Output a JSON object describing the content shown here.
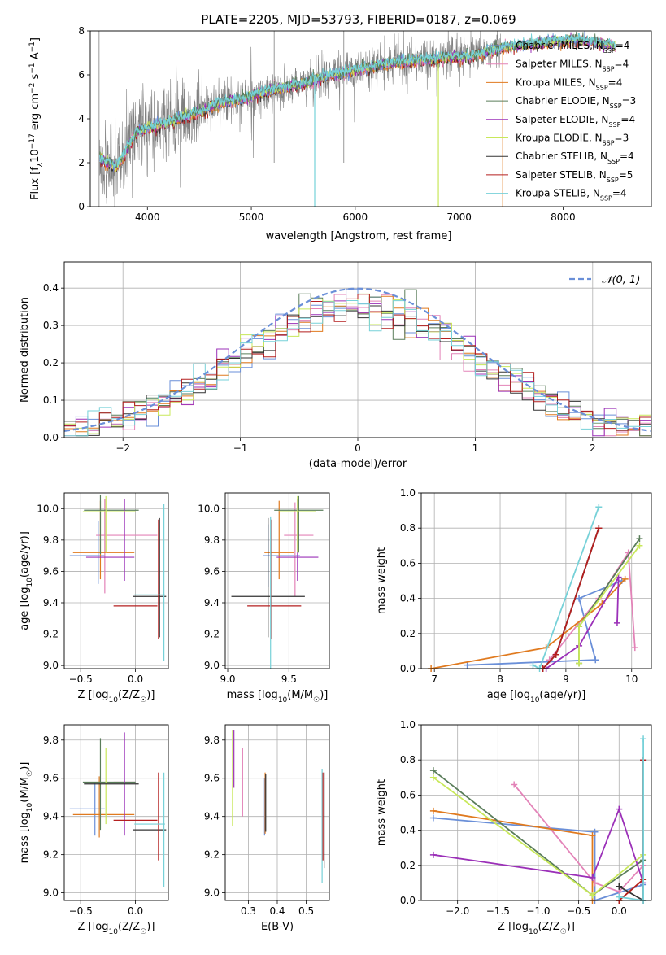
{
  "title": "PLATE=2205, MJD=53793, FIBERID=0187, z=0.069",
  "colors": {
    "chabrier_miles": "#6a8fd8",
    "salpeter_miles": "#e383b8",
    "kroupa_miles": "#e07a1f",
    "chabrier_elodie": "#5a7d5a",
    "salpeter_elodie": "#9b30b8",
    "kroupa_elodie": "#c8e85a",
    "chabrier_stelib": "#333333",
    "salpeter_stelib": "#b41f1f",
    "kroupa_stelib": "#76d1d8",
    "data": "#808080",
    "grid": "#b0b0b0"
  },
  "chart_data": [
    {
      "id": "spectrum",
      "type": "line",
      "xlabel": "wavelength [Angstrom, rest frame]",
      "ylabel": "Flux [f_λ 10^-17 erg cm^-2 s^-1 A^-1]",
      "xlim": [
        3450,
        8850
      ],
      "ylim": [
        0,
        8
      ],
      "xticks": [
        "4000",
        "5000",
        "6000",
        "7000",
        "8000"
      ],
      "yticks": [
        "0",
        "2",
        "4",
        "6",
        "8"
      ],
      "grid": false,
      "legend_position": "right",
      "legend": [
        {
          "label": "Chabrier MILES, N",
          "sub": "SSP",
          "suffix": "=4",
          "color_key": "chabrier_miles"
        },
        {
          "label": "Salpeter MILES, N",
          "sub": "SSP",
          "suffix": "=4",
          "color_key": "salpeter_miles"
        },
        {
          "label": "Kroupa MILES, N",
          "sub": "SSP",
          "suffix": "=4",
          "color_key": "kroupa_miles"
        },
        {
          "label": "Chabrier ELODIE, N",
          "sub": "SSP",
          "suffix": "=3",
          "color_key": "chabrier_elodie"
        },
        {
          "label": "Salpeter ELODIE, N",
          "sub": "SSP",
          "suffix": "=4",
          "color_key": "salpeter_elodie"
        },
        {
          "label": "Kroupa ELODIE, N",
          "sub": "SSP",
          "suffix": "=3",
          "color_key": "kroupa_elodie"
        },
        {
          "label": "Chabrier STELIB, N",
          "sub": "SSP",
          "suffix": "=4",
          "color_key": "chabrier_stelib"
        },
        {
          "label": "Salpeter STELIB, N",
          "sub": "SSP",
          "suffix": "=5",
          "color_key": "salpeter_stelib"
        },
        {
          "label": "Kroupa STELIB, N",
          "sub": "SSP",
          "suffix": "=4",
          "color_key": "kroupa_stelib"
        }
      ],
      "continuum": {
        "x": [
          3540,
          3700,
          3900,
          4100,
          4300,
          4500,
          4700,
          4900,
          5100,
          5300,
          5500,
          5700,
          5900,
          6100,
          6300,
          6500,
          6700,
          6900,
          7100,
          7300,
          7500,
          7700,
          7900,
          8100,
          8300,
          8500
        ],
        "y": [
          2.2,
          1.8,
          3.4,
          3.7,
          4.0,
          4.3,
          4.7,
          4.9,
          5.2,
          5.4,
          5.6,
          5.9,
          6.1,
          6.3,
          6.5,
          6.6,
          6.7,
          6.8,
          6.8,
          7.1,
          7.3,
          7.4,
          7.5,
          7.6,
          7.5,
          7.3
        ]
      },
      "model_range": [
        3540,
        8500
      ],
      "data_range": [
        3540,
        7400
      ]
    },
    {
      "id": "residual-histogram",
      "type": "bar",
      "xlabel": "(data-model)/error",
      "ylabel": "Normed distribution",
      "xlim": [
        -2.5,
        2.5
      ],
      "ylim": [
        0,
        0.47
      ],
      "xticks": [
        "−2",
        "−1",
        "0",
        "1",
        "2"
      ],
      "yticks": [
        "0.0",
        "0.1",
        "0.2",
        "0.3",
        "0.4"
      ],
      "grid": true,
      "legend_position": "top-right",
      "legend_label": "𝒩(0, 1)",
      "bin_width": 0.1,
      "series_color_keys": [
        "chabrier_miles",
        "salpeter_miles",
        "kroupa_miles",
        "chabrier_elodie",
        "salpeter_elodie",
        "kroupa_elodie",
        "chabrier_stelib",
        "salpeter_stelib",
        "kroupa_stelib"
      ]
    },
    {
      "id": "age-vs-Z",
      "type": "scatter",
      "xlabel": "Z [log10(Z/Z☉)]",
      "ylabel": "age  [log10(age/yr)]",
      "xlim": [
        -0.65,
        0.3
      ],
      "ylim": [
        8.98,
        10.1
      ],
      "xticks": [
        "−0.5",
        "0.0"
      ],
      "yticks": [
        "9.0",
        "9.2",
        "9.4",
        "9.6",
        "9.8",
        "10.0"
      ],
      "grid": true,
      "points": [
        {
          "x": -0.44,
          "y": 9.7,
          "xerr": 0.16,
          "yerr": 0.0,
          "color_key": "chabrier_miles"
        },
        {
          "x": -0.34,
          "y": 9.72,
          "xerr": 0.0,
          "yerr": 0.2,
          "color_key": "chabrier_miles"
        },
        {
          "x": -0.08,
          "y": 9.83,
          "xerr": 0.28,
          "yerr": 0.0,
          "color_key": "salpeter_miles"
        },
        {
          "x": -0.28,
          "y": 9.76,
          "xerr": 0.0,
          "yerr": 0.3,
          "color_key": "salpeter_miles"
        },
        {
          "x": -0.29,
          "y": 9.72,
          "xerr": 0.28,
          "yerr": 0.0,
          "color_key": "kroupa_miles"
        },
        {
          "x": -0.32,
          "y": 9.8,
          "xerr": 0.0,
          "yerr": 0.25,
          "color_key": "kroupa_miles"
        },
        {
          "x": -0.22,
          "y": 9.99,
          "xerr": 0.25,
          "yerr": 0.0,
          "color_key": "chabrier_elodie"
        },
        {
          "x": -0.32,
          "y": 9.9,
          "xerr": 0.0,
          "yerr": 0.19,
          "color_key": "chabrier_elodie"
        },
        {
          "x": -0.23,
          "y": 9.69,
          "xerr": 0.22,
          "yerr": 0.0,
          "color_key": "salpeter_elodie"
        },
        {
          "x": -0.1,
          "y": 9.8,
          "xerr": 0.0,
          "yerr": 0.26,
          "color_key": "salpeter_elodie"
        },
        {
          "x": -0.24,
          "y": 9.98,
          "xerr": 0.24,
          "yerr": 0.0,
          "color_key": "kroupa_elodie"
        },
        {
          "x": -0.27,
          "y": 9.9,
          "xerr": 0.0,
          "yerr": 0.18,
          "color_key": "kroupa_elodie"
        },
        {
          "x": 0.13,
          "y": 9.44,
          "xerr": 0.15,
          "yerr": 0.0,
          "color_key": "chabrier_stelib"
        },
        {
          "x": 0.22,
          "y": 9.56,
          "xerr": 0.0,
          "yerr": 0.38,
          "color_key": "chabrier_stelib"
        },
        {
          "x": 0.0,
          "y": 9.38,
          "xerr": 0.2,
          "yerr": 0.0,
          "color_key": "salpeter_stelib"
        },
        {
          "x": 0.21,
          "y": 9.55,
          "xerr": 0.0,
          "yerr": 0.38,
          "color_key": "salpeter_stelib"
        },
        {
          "x": 0.13,
          "y": 9.45,
          "xerr": 0.14,
          "yerr": 0.0,
          "color_key": "kroupa_stelib"
        },
        {
          "x": 0.26,
          "y": 9.53,
          "xerr": 0.0,
          "yerr": 0.5,
          "color_key": "kroupa_stelib"
        }
      ]
    },
    {
      "id": "age-vs-mass",
      "type": "scatter",
      "xlabel": "mass [log10(M/M☉)]",
      "ylabel": "",
      "xlim": [
        8.98,
        9.83
      ],
      "ylim": [
        8.98,
        10.1
      ],
      "xticks": [
        "9.0",
        "9.5"
      ],
      "yticks": [
        "9.0",
        "9.2",
        "9.4",
        "9.6",
        "9.8",
        "10.0"
      ],
      "grid": true,
      "points": [
        {
          "x": 9.44,
          "y": 9.7,
          "xerr": 0.15,
          "yerr": 0.0,
          "color_key": "chabrier_miles"
        },
        {
          "x": 9.33,
          "y": 9.7,
          "xerr": 0.0,
          "yerr": 0.2,
          "color_key": "chabrier_miles"
        },
        {
          "x": 9.58,
          "y": 9.83,
          "xerr": 0.12,
          "yerr": 0.0,
          "color_key": "salpeter_miles"
        },
        {
          "x": 9.55,
          "y": 9.74,
          "xerr": 0.0,
          "yerr": 0.3,
          "color_key": "salpeter_miles"
        },
        {
          "x": 9.42,
          "y": 9.72,
          "xerr": 0.12,
          "yerr": 0.0,
          "color_key": "kroupa_miles"
        },
        {
          "x": 9.42,
          "y": 9.8,
          "xerr": 0.0,
          "yerr": 0.25,
          "color_key": "kroupa_miles"
        },
        {
          "x": 9.58,
          "y": 9.99,
          "xerr": 0.2,
          "yerr": 0.0,
          "color_key": "chabrier_elodie"
        },
        {
          "x": 9.58,
          "y": 9.9,
          "xerr": 0.0,
          "yerr": 0.18,
          "color_key": "chabrier_elodie"
        },
        {
          "x": 9.57,
          "y": 9.69,
          "xerr": 0.17,
          "yerr": 0.0,
          "color_key": "salpeter_elodie"
        },
        {
          "x": 9.57,
          "y": 9.8,
          "xerr": 0.0,
          "yerr": 0.26,
          "color_key": "salpeter_elodie"
        },
        {
          "x": 9.57,
          "y": 9.98,
          "xerr": 0.15,
          "yerr": 0.0,
          "color_key": "kroupa_elodie"
        },
        {
          "x": 9.57,
          "y": 9.9,
          "xerr": 0.0,
          "yerr": 0.18,
          "color_key": "kroupa_elodie"
        },
        {
          "x": 9.33,
          "y": 9.44,
          "xerr": 0.3,
          "yerr": 0.0,
          "color_key": "chabrier_stelib"
        },
        {
          "x": 9.33,
          "y": 9.56,
          "xerr": 0.0,
          "yerr": 0.38,
          "color_key": "chabrier_stelib"
        },
        {
          "x": 9.38,
          "y": 9.38,
          "xerr": 0.22,
          "yerr": 0.0,
          "color_key": "salpeter_stelib"
        },
        {
          "x": 9.36,
          "y": 9.55,
          "xerr": 0.0,
          "yerr": 0.38,
          "color_key": "salpeter_stelib"
        },
        {
          "x": 9.35,
          "y": 9.45,
          "xerr": 0.0,
          "yerr": 0.5,
          "color_key": "kroupa_stelib"
        }
      ]
    },
    {
      "id": "mass-weight-vs-age",
      "type": "line",
      "xlabel": "age  [log10(age/yr)]",
      "ylabel": "mass weight",
      "xlim": [
        6.8,
        10.3
      ],
      "ylim": [
        0,
        1
      ],
      "xticks": [
        "7",
        "8",
        "9",
        "10"
      ],
      "yticks": [
        "0.0",
        "0.2",
        "0.4",
        "0.6",
        "0.8",
        "1.0"
      ],
      "grid": true,
      "series": [
        {
          "color_key": "chabrier_miles",
          "x": [
            7.5,
            9.45,
            9.2,
            9.85
          ],
          "y": [
            0.02,
            0.05,
            0.4,
            0.5
          ]
        },
        {
          "color_key": "salpeter_miles",
          "x": [
            8.75,
            9.5,
            9.95,
            10.05
          ],
          "y": [
            0.05,
            0.4,
            0.66,
            0.12
          ]
        },
        {
          "color_key": "kroupa_miles",
          "x": [
            6.95,
            8.7,
            9.55,
            9.9
          ],
          "y": [
            0.0,
            0.12,
            0.37,
            0.51
          ]
        },
        {
          "color_key": "chabrier_elodie",
          "x": [
            9.2,
            9.2,
            10.12
          ],
          "y": [
            0.03,
            0.24,
            0.74
          ]
        },
        {
          "color_key": "salpeter_elodie",
          "x": [
            8.7,
            9.2,
            9.8,
            9.78
          ],
          "y": [
            0.0,
            0.13,
            0.52,
            0.26
          ]
        },
        {
          "color_key": "kroupa_elodie",
          "x": [
            9.2,
            9.2,
            10.12
          ],
          "y": [
            0.03,
            0.24,
            0.7
          ]
        },
        {
          "color_key": "chabrier_stelib",
          "x": [
            8.65,
            8.85,
            9.5
          ],
          "y": [
            0.0,
            0.08,
            0.8
          ]
        },
        {
          "color_key": "salpeter_stelib",
          "x": [
            8.65,
            8.85,
            9.5
          ],
          "y": [
            0.0,
            0.08,
            0.8
          ]
        },
        {
          "color_key": "kroupa_stelib",
          "x": [
            8.5,
            8.6,
            9.5
          ],
          "y": [
            0.02,
            0.0,
            0.92
          ]
        }
      ]
    },
    {
      "id": "mass-vs-Z",
      "type": "scatter",
      "xlabel": "Z [log10(Z/Z☉)]",
      "ylabel": "mass [log10(M/M☉)]",
      "xlim": [
        -0.65,
        0.3
      ],
      "ylim": [
        8.96,
        9.88
      ],
      "xticks": [
        "−0.5",
        "0.0"
      ],
      "yticks": [
        "9.0",
        "9.2",
        "9.4",
        "9.6",
        "9.8"
      ],
      "grid": true,
      "points": [
        {
          "x": -0.44,
          "y": 9.44,
          "xerr": 0.16,
          "yerr": 0.0,
          "color_key": "chabrier_miles"
        },
        {
          "x": -0.37,
          "y": 9.44,
          "xerr": 0.0,
          "yerr": 0.14,
          "color_key": "chabrier_miles"
        },
        {
          "x": -0.1,
          "y": 9.58,
          "xerr": 0.1,
          "yerr": 0.0,
          "color_key": "salpeter_miles"
        },
        {
          "x": -0.29,
          "y": 9.41,
          "xerr": 0.28,
          "yerr": 0.0,
          "color_key": "kroupa_miles"
        },
        {
          "x": -0.33,
          "y": 9.45,
          "xerr": 0.0,
          "yerr": 0.16,
          "color_key": "kroupa_miles"
        },
        {
          "x": -0.24,
          "y": 9.58,
          "xerr": 0.24,
          "yerr": 0.0,
          "color_key": "chabrier_elodie"
        },
        {
          "x": -0.32,
          "y": 9.57,
          "xerr": 0.0,
          "yerr": 0.24,
          "color_key": "chabrier_elodie"
        },
        {
          "x": -0.1,
          "y": 9.57,
          "xerr": 0.0,
          "yerr": 0.27,
          "color_key": "salpeter_elodie"
        },
        {
          "x": -0.27,
          "y": 9.56,
          "xerr": 0.0,
          "yerr": 0.2,
          "color_key": "kroupa_elodie"
        },
        {
          "x": -0.22,
          "y": 9.57,
          "xerr": 0.25,
          "yerr": 0.0,
          "color_key": "chabrier_stelib"
        },
        {
          "x": 0.13,
          "y": 9.33,
          "xerr": 0.15,
          "yerr": 0.0,
          "color_key": "chabrier_stelib"
        },
        {
          "x": 0.0,
          "y": 9.38,
          "xerr": 0.2,
          "yerr": 0.0,
          "color_key": "salpeter_stelib"
        },
        {
          "x": 0.21,
          "y": 9.4,
          "xerr": 0.0,
          "yerr": 0.23,
          "color_key": "salpeter_stelib"
        },
        {
          "x": 0.13,
          "y": 9.36,
          "xerr": 0.14,
          "yerr": 0.0,
          "color_key": "kroupa_stelib"
        },
        {
          "x": 0.26,
          "y": 9.33,
          "xerr": 0.0,
          "yerr": 0.3,
          "color_key": "kroupa_stelib"
        }
      ]
    },
    {
      "id": "mass-vs-ebv",
      "type": "scatter",
      "xlabel": "E(B-V)",
      "ylabel": "",
      "xlim": [
        0.22,
        0.58
      ],
      "ylim": [
        8.96,
        9.88
      ],
      "xticks": [
        "0.3",
        "0.4",
        "0.5"
      ],
      "yticks": [
        "9.0",
        "9.2",
        "9.4",
        "9.6",
        "9.8"
      ],
      "grid": true,
      "points": [
        {
          "x": 0.245,
          "y": 9.6,
          "yerr": 0.25,
          "color_key": "kroupa_elodie"
        },
        {
          "x": 0.25,
          "y": 9.7,
          "yerr": 0.15,
          "color_key": "salpeter_elodie"
        },
        {
          "x": 0.28,
          "y": 9.58,
          "yerr": 0.18,
          "color_key": "salpeter_miles"
        },
        {
          "x": 0.356,
          "y": 9.45,
          "yerr": 0.15,
          "color_key": "chabrier_miles"
        },
        {
          "x": 0.358,
          "y": 9.47,
          "yerr": 0.16,
          "color_key": "kroupa_miles"
        },
        {
          "x": 0.36,
          "y": 9.47,
          "yerr": 0.15,
          "color_key": "chabrier_stelib"
        },
        {
          "x": 0.555,
          "y": 9.35,
          "yerr": 0.3,
          "color_key": "kroupa_stelib"
        },
        {
          "x": 0.558,
          "y": 9.4,
          "yerr": 0.23,
          "color_key": "salpeter_stelib"
        },
        {
          "x": 0.562,
          "y": 9.38,
          "yerr": 0.25,
          "color_key": "chabrier_stelib"
        }
      ]
    },
    {
      "id": "mass-weight-vs-Z",
      "type": "line",
      "xlabel": "Z [log10(Z/Z☉)]",
      "ylabel": "mass weight",
      "xlim": [
        -2.45,
        0.4
      ],
      "ylim": [
        0,
        1
      ],
      "xticks": [
        "−2.0",
        "−1.5",
        "−1.0",
        "−0.5",
        "0.0"
      ],
      "yticks": [
        "0.0",
        "0.2",
        "0.4",
        "0.6",
        "0.8",
        "1.0"
      ],
      "grid": true,
      "series": [
        {
          "color_key": "chabrier_miles",
          "x": [
            -2.3,
            -0.3,
            -0.3,
            0.3
          ],
          "y": [
            0.47,
            0.39,
            0.0,
            0.09
          ]
        },
        {
          "color_key": "salpeter_miles",
          "x": [
            -1.3,
            -0.3,
            0.0,
            0.3
          ],
          "y": [
            0.66,
            0.1,
            0.05,
            0.2
          ]
        },
        {
          "color_key": "kroupa_miles",
          "x": [
            -2.3,
            -0.33,
            -0.33,
            0.0,
            0.3
          ],
          "y": [
            0.51,
            0.37,
            0.0,
            0.0,
            0.12
          ]
        },
        {
          "color_key": "chabrier_elodie",
          "x": [
            -2.3,
            -0.33,
            0.3
          ],
          "y": [
            0.74,
            0.03,
            0.23
          ]
        },
        {
          "color_key": "salpeter_elodie",
          "x": [
            -2.3,
            -0.33,
            0.0,
            0.3
          ],
          "y": [
            0.26,
            0.13,
            0.52,
            0.1
          ]
        },
        {
          "color_key": "kroupa_elodie",
          "x": [
            -2.3,
            -0.33,
            0.3
          ],
          "y": [
            0.7,
            0.03,
            0.26
          ]
        },
        {
          "color_key": "chabrier_stelib",
          "x": [
            0.0,
            0.3,
            0.3
          ],
          "y": [
            0.08,
            0.0,
            0.8
          ]
        },
        {
          "color_key": "salpeter_stelib",
          "x": [
            0.0,
            0.3,
            0.3
          ],
          "y": [
            0.0,
            0.12,
            0.8
          ]
        },
        {
          "color_key": "kroupa_stelib",
          "x": [
            0.0,
            0.3,
            0.3
          ],
          "y": [
            0.02,
            0.0,
            0.92
          ]
        }
      ]
    }
  ]
}
